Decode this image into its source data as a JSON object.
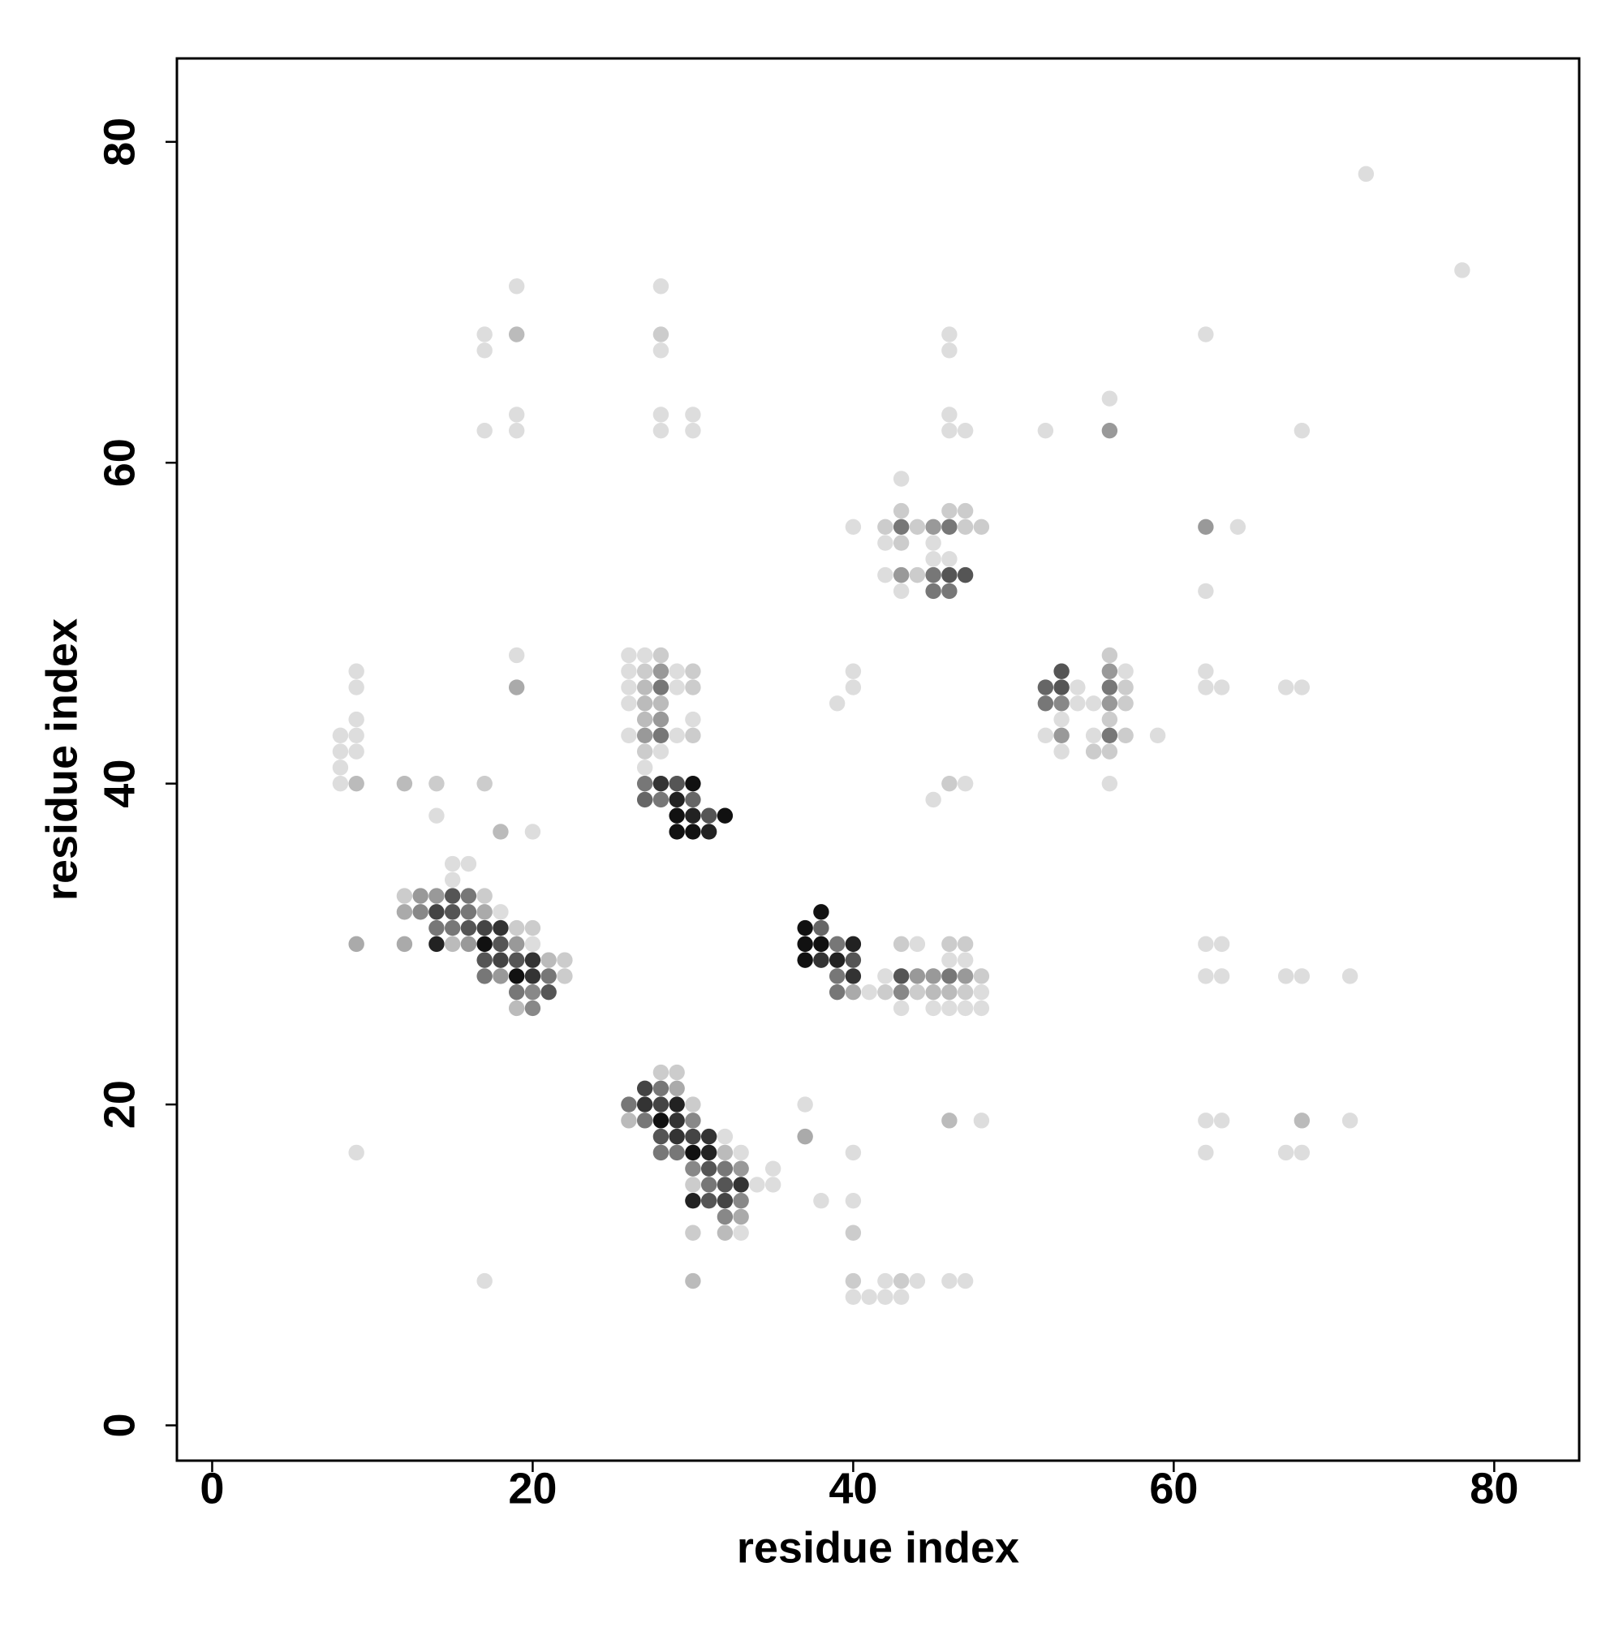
{
  "chart_data": {
    "type": "scatter",
    "xlabel": "residue index",
    "ylabel": "residue index",
    "xlim": [
      -2.2,
      85.3
    ],
    "ylim": [
      -2.2,
      85.2
    ],
    "xticks": [
      0,
      20,
      40,
      60,
      80
    ],
    "yticks": [
      0,
      20,
      40,
      60,
      80
    ],
    "grid": false,
    "x": [
      72,
      78,
      19,
      28,
      17,
      19,
      28,
      46,
      62,
      17,
      28,
      46,
      56,
      19,
      28,
      30,
      46,
      17,
      19,
      28,
      30,
      46,
      47,
      52,
      56,
      68,
      43,
      43,
      46,
      47,
      40,
      42,
      43,
      44,
      45,
      46,
      47,
      48,
      62,
      64,
      42,
      43,
      45,
      45,
      46,
      42,
      43,
      44,
      45,
      46,
      47,
      43,
      45,
      46,
      62,
      19,
      26,
      27,
      28,
      56,
      9,
      26,
      27,
      28,
      29,
      30,
      40,
      53,
      56,
      57,
      62,
      9,
      19,
      26,
      27,
      28,
      29,
      30,
      40,
      52,
      53,
      54,
      56,
      57,
      62,
      63,
      67,
      68,
      26,
      27,
      28,
      39,
      52,
      53,
      54,
      55,
      56,
      57,
      9,
      27,
      28,
      30,
      53,
      56,
      8,
      9,
      26,
      27,
      28,
      29,
      30,
      52,
      53,
      55,
      56,
      57,
      59,
      8,
      9,
      27,
      28,
      53,
      55,
      56,
      8,
      27,
      8,
      9,
      12,
      14,
      17,
      27,
      28,
      29,
      30,
      46,
      47,
      56,
      27,
      28,
      29,
      30,
      45,
      14,
      29,
      30,
      31,
      32,
      18,
      20,
      29,
      30,
      31,
      15,
      16,
      15,
      12,
      13,
      14,
      15,
      16,
      17,
      12,
      13,
      14,
      15,
      16,
      17,
      18,
      38,
      14,
      15,
      16,
      17,
      18,
      19,
      20,
      37,
      38,
      9,
      12,
      14,
      15,
      16,
      17,
      18,
      19,
      20,
      37,
      38,
      39,
      40,
      43,
      44,
      46,
      47,
      62,
      63,
      17,
      18,
      19,
      20,
      21,
      22,
      37,
      38,
      39,
      40,
      46,
      47,
      17,
      18,
      19,
      20,
      21,
      22,
      39,
      40,
      42,
      43,
      44,
      45,
      46,
      47,
      48,
      62,
      63,
      67,
      68,
      71,
      19,
      20,
      21,
      39,
      40,
      41,
      42,
      43,
      44,
      45,
      46,
      47,
      48,
      19,
      20,
      43,
      45,
      46,
      47,
      48,
      28,
      29,
      27,
      28,
      29,
      26,
      27,
      28,
      29,
      30,
      37,
      26,
      27,
      28,
      29,
      30,
      46,
      48,
      62,
      63,
      68,
      71,
      28,
      29,
      30,
      31,
      32,
      37,
      9,
      28,
      29,
      30,
      31,
      32,
      33,
      40,
      62,
      67,
      68,
      30,
      31,
      32,
      33,
      35,
      30,
      31,
      32,
      33,
      34,
      35,
      30,
      31,
      32,
      33,
      38,
      40,
      32,
      33,
      30,
      32,
      33,
      40,
      17,
      30,
      40,
      42,
      43,
      44,
      46,
      47,
      40,
      41,
      42,
      43
    ],
    "y": [
      78,
      72,
      71,
      71,
      68,
      68,
      68,
      68,
      68,
      67,
      67,
      67,
      64,
      63,
      63,
      63,
      63,
      62,
      62,
      62,
      62,
      62,
      62,
      62,
      62,
      62,
      59,
      57,
      57,
      57,
      56,
      56,
      56,
      56,
      56,
      56,
      56,
      56,
      56,
      56,
      55,
      55,
      55,
      54,
      54,
      53,
      53,
      53,
      53,
      53,
      53,
      52,
      52,
      52,
      52,
      48,
      48,
      48,
      48,
      48,
      47,
      47,
      47,
      47,
      47,
      47,
      47,
      47,
      47,
      47,
      47,
      46,
      46,
      46,
      46,
      46,
      46,
      46,
      46,
      46,
      46,
      46,
      46,
      46,
      46,
      46,
      46,
      46,
      45,
      45,
      45,
      45,
      45,
      45,
      45,
      45,
      45,
      45,
      44,
      44,
      44,
      44,
      44,
      44,
      43,
      43,
      43,
      43,
      43,
      43,
      43,
      43,
      43,
      43,
      43,
      43,
      43,
      42,
      42,
      42,
      42,
      42,
      42,
      42,
      41,
      41,
      40,
      40,
      40,
      40,
      40,
      40,
      40,
      40,
      40,
      40,
      40,
      40,
      39,
      39,
      39,
      39,
      39,
      38,
      38,
      38,
      38,
      38,
      37,
      37,
      37,
      37,
      37,
      35,
      35,
      34,
      33,
      33,
      33,
      33,
      33,
      33,
      32,
      32,
      32,
      32,
      32,
      32,
      32,
      32,
      31,
      31,
      31,
      31,
      31,
      31,
      31,
      31,
      31,
      30,
      30,
      30,
      30,
      30,
      30,
      30,
      30,
      30,
      30,
      30,
      30,
      30,
      30,
      30,
      30,
      30,
      30,
      30,
      29,
      29,
      29,
      29,
      29,
      29,
      29,
      29,
      29,
      29,
      29,
      29,
      28,
      28,
      28,
      28,
      28,
      28,
      28,
      28,
      28,
      28,
      28,
      28,
      28,
      28,
      28,
      28,
      28,
      28,
      28,
      28,
      27,
      27,
      27,
      27,
      27,
      27,
      27,
      27,
      27,
      27,
      27,
      27,
      27,
      26,
      26,
      26,
      26,
      26,
      26,
      26,
      22,
      22,
      21,
      21,
      21,
      20,
      20,
      20,
      20,
      20,
      20,
      19,
      19,
      19,
      19,
      19,
      19,
      19,
      19,
      19,
      19,
      19,
      18,
      18,
      18,
      18,
      18,
      18,
      17,
      17,
      17,
      17,
      17,
      17,
      17,
      17,
      17,
      17,
      17,
      16,
      16,
      16,
      16,
      16,
      15,
      15,
      15,
      15,
      15,
      15,
      14,
      14,
      14,
      14,
      14,
      14,
      13,
      13,
      12,
      12,
      12,
      12,
      9,
      9,
      9,
      9,
      9,
      9,
      9,
      9,
      8,
      8,
      8,
      8
    ],
    "colors": [
      "#ddd",
      "#ddd",
      "#ddd",
      "#ddd",
      "#ddd",
      "#bbb",
      "#ccc",
      "#ddd",
      "#ddd",
      "#ddd",
      "#ddd",
      "#ddd",
      "#ddd",
      "#ddd",
      "#ddd",
      "#ddd",
      "#ddd",
      "#ddd",
      "#ddd",
      "#ddd",
      "#ddd",
      "#ddd",
      "#ddd",
      "#ddd",
      "#999",
      "#ddd",
      "#ddd",
      "#ccc",
      "#ccc",
      "#ccc",
      "#ddd",
      "#ccc",
      "#777",
      "#ccc",
      "#999",
      "#777",
      "#ccc",
      "#ccc",
      "#999",
      "#ddd",
      "#ddd",
      "#ccc",
      "#ddd",
      "#ddd",
      "#ddd",
      "#ddd",
      "#999",
      "#ccc",
      "#777",
      "#555",
      "#555",
      "#ddd",
      "#777",
      "#777",
      "#ddd",
      "#ddd",
      "#ddd",
      "#ddd",
      "#ccc",
      "#ccc",
      "#ddd",
      "#ddd",
      "#ccc",
      "#999",
      "#ddd",
      "#ccc",
      "#ddd",
      "#555",
      "#999",
      "#ddd",
      "#ddd",
      "#ddd",
      "#aaa",
      "#ddd",
      "#bbb",
      "#777",
      "#ddd",
      "#ccc",
      "#ddd",
      "#666",
      "#555",
      "#ddd",
      "#777",
      "#ccc",
      "#ddd",
      "#ddd",
      "#ddd",
      "#ddd",
      "#ddd",
      "#bbb",
      "#bbb",
      "#ddd",
      "#777",
      "#888",
      "#ddd",
      "#ddd",
      "#999",
      "#ccc",
      "#ddd",
      "#bbb",
      "#999",
      "#ddd",
      "#ddd",
      "#ccc",
      "#ddd",
      "#ddd",
      "#ddd",
      "#999",
      "#777",
      "#ddd",
      "#ccc",
      "#ddd",
      "#999",
      "#ddd",
      "#777",
      "#ccc",
      "#ddd",
      "#ddd",
      "#ddd",
      "#ccc",
      "#ddd",
      "#ddd",
      "#ccc",
      "#ccc",
      "#ddd",
      "#ddd",
      "#ddd",
      "#bbb",
      "#bbb",
      "#ccc",
      "#ccc",
      "#777",
      "#333",
      "#555",
      "#111",
      "#ccc",
      "#ddd",
      "#ddd",
      "#666",
      "#777",
      "#222",
      "#666",
      "#ddd",
      "#ddd",
      "#111",
      "#222",
      "#555",
      "#111",
      "#bbb",
      "#ddd",
      "#111",
      "#111",
      "#222",
      "#ddd",
      "#ddd",
      "#ddd",
      "#ccc",
      "#999",
      "#999",
      "#555",
      "#777",
      "#ccc",
      "#aaa",
      "#888",
      "#444",
      "#555",
      "#777",
      "#aaa",
      "#ddd",
      "#111",
      "#777",
      "#777",
      "#555",
      "#444",
      "#333",
      "#ccc",
      "#ccc",
      "#111",
      "#666",
      "#aaa",
      "#aaa",
      "#222",
      "#bbb",
      "#999",
      "#111",
      "#555",
      "#999",
      "#ddd",
      "#111",
      "#111",
      "#777",
      "#222",
      "#ccc",
      "#ddd",
      "#ccc",
      "#ccc",
      "#ddd",
      "#ddd",
      "#555",
      "#444",
      "#555",
      "#333",
      "#bbb",
      "#ccc",
      "#111",
      "#333",
      "#222",
      "#555",
      "#ddd",
      "#ddd",
      "#777",
      "#999",
      "#111",
      "#333",
      "#777",
      "#ccc",
      "#777",
      "#333",
      "#ddd",
      "#555",
      "#999",
      "#999",
      "#777",
      "#999",
      "#ccc",
      "#ddd",
      "#ddd",
      "#ddd",
      "#ddd",
      "#ddd",
      "#777",
      "#888",
      "#555",
      "#777",
      "#aaa",
      "#ddd",
      "#ccc",
      "#888",
      "#ccc",
      "#bbb",
      "#bbb",
      "#ccc",
      "#ddd",
      "#bbb",
      "#888",
      "#ddd",
      "#ddd",
      "#ddd",
      "#ddd",
      "#ddd",
      "#ccc",
      "#ccc",
      "#444",
      "#777",
      "#aaa",
      "#777",
      "#333",
      "#444",
      "#222",
      "#ccc",
      "#ddd",
      "#bbb",
      "#777",
      "#111",
      "#333",
      "#888",
      "#bbb",
      "#ddd",
      "#ddd",
      "#ddd",
      "#bbb",
      "#ddd",
      "#555",
      "#333",
      "#444",
      "#333",
      "#ddd",
      "#aaa",
      "#ddd",
      "#777",
      "#777",
      "#111",
      "#222",
      "#bbb",
      "#ddd",
      "#ddd",
      "#ddd",
      "#ddd",
      "#ddd",
      "#888",
      "#555",
      "#777",
      "#999",
      "#ddd",
      "#ccc",
      "#777",
      "#555",
      "#333",
      "#ddd",
      "#ddd",
      "#222",
      "#555",
      "#444",
      "#888",
      "#ddd",
      "#ddd",
      "#888",
      "#aaa",
      "#ccc",
      "#bbb",
      "#ddd",
      "#ccc",
      "#ddd",
      "#bbb",
      "#ccc",
      "#ddd",
      "#ccc",
      "#ddd",
      "#ddd",
      "#ddd",
      "#ddd",
      "#ddd",
      "#ddd",
      "#ddd"
    ]
  }
}
